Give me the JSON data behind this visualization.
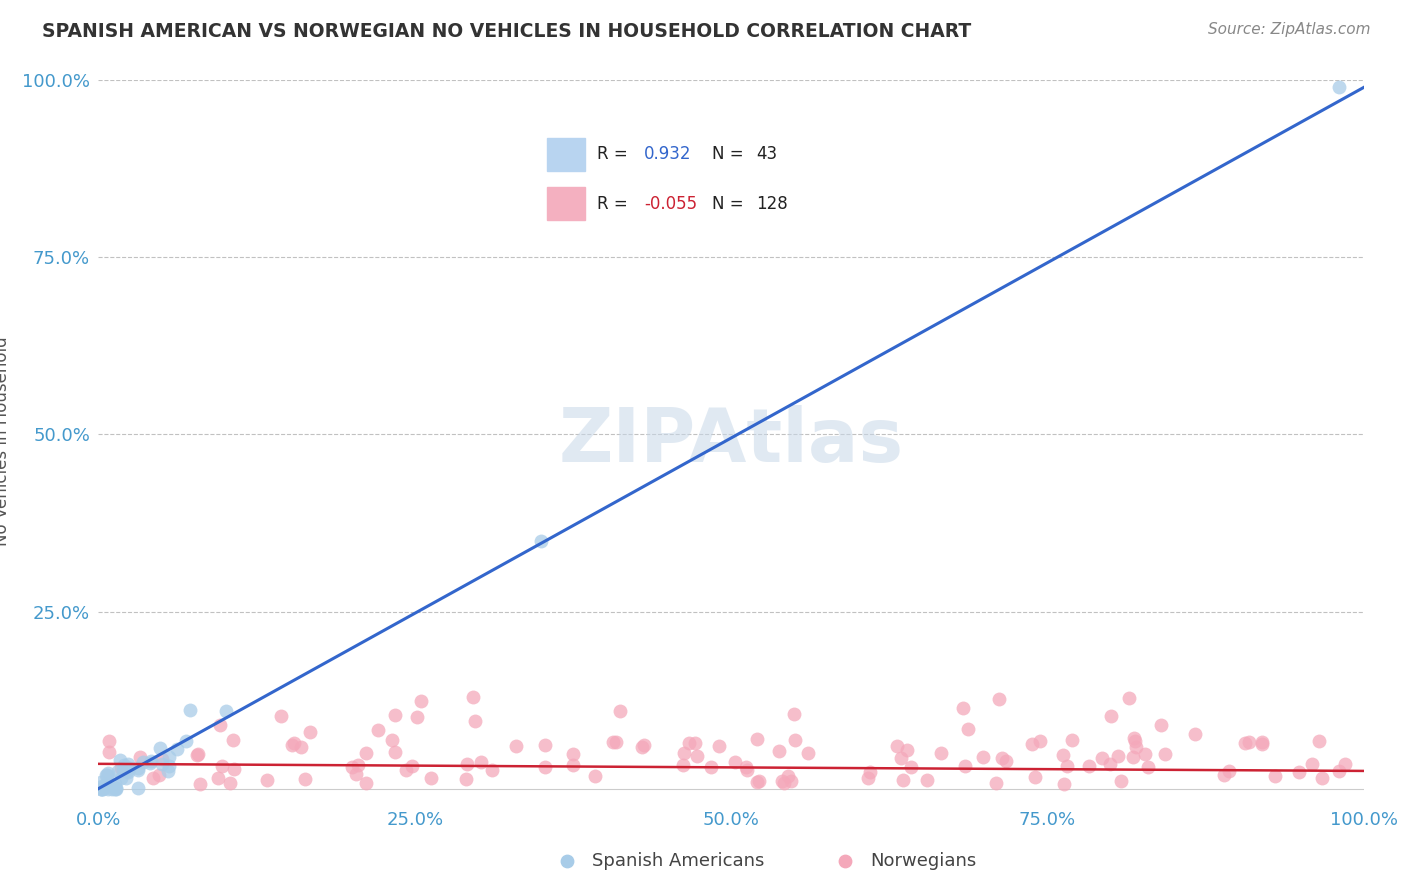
{
  "title": "SPANISH AMERICAN VS NORWEGIAN NO VEHICLES IN HOUSEHOLD CORRELATION CHART",
  "source": "Source: ZipAtlas.com",
  "ylabel": "No Vehicles in Household",
  "xlim": [
    0,
    100
  ],
  "ylim": [
    -2,
    100
  ],
  "blue_R": 0.932,
  "blue_N": 43,
  "pink_R": -0.055,
  "pink_N": 128,
  "blue_color": "#a8cce8",
  "pink_color": "#f4a8ba",
  "blue_line_color": "#3366cc",
  "pink_line_color": "#cc2233",
  "legend_label_blue": "Spanish Americans",
  "legend_label_pink": "Norwegians",
  "watermark": "ZIPAtlas",
  "background_color": "#ffffff",
  "grid_color": "#bbbbbb",
  "title_color": "#333333",
  "axis_label_color": "#555555",
  "tick_color": "#4499cc",
  "blue_line_x0": 0,
  "blue_line_y0": 0,
  "blue_line_x1": 100,
  "blue_line_y1": 99,
  "pink_line_x0": 0,
  "pink_line_y0": 3.5,
  "pink_line_x1": 100,
  "pink_line_y1": 2.5
}
